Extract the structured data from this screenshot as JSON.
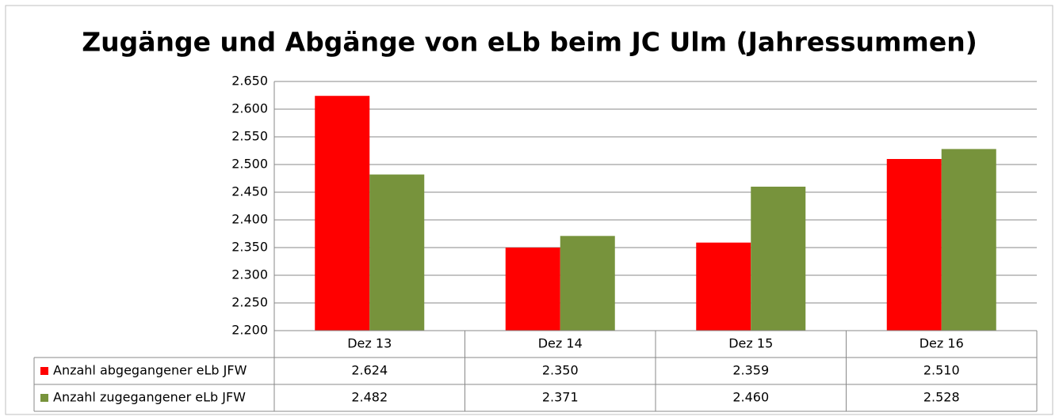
{
  "chart_data": {
    "type": "bar",
    "title": "Zugänge und Abgänge von eLb beim JC Ulm (Jahressummen)",
    "categories": [
      "Dez 13",
      "Dez 14",
      "Dez 15",
      "Dez 16"
    ],
    "series": [
      {
        "name": "Anzahl abgegangener eLb JFW",
        "color": "#ff0000",
        "values": [
          2624,
          2350,
          2359,
          2510
        ],
        "value_labels": [
          "2.624",
          "2.350",
          "2.359",
          "2.510"
        ]
      },
      {
        "name": "Anzahl zugegangener eLb JFW",
        "color": "#77933c",
        "values": [
          2482,
          2371,
          2460,
          2528
        ],
        "value_labels": [
          "2.482",
          "2.371",
          "2.460",
          "2.528"
        ]
      }
    ],
    "ylim": [
      2200,
      2650
    ],
    "yticks": [
      {
        "value": 2200,
        "label": "2.200"
      },
      {
        "value": 2250,
        "label": "2.250"
      },
      {
        "value": 2300,
        "label": "2.300"
      },
      {
        "value": 2350,
        "label": "2.350"
      },
      {
        "value": 2400,
        "label": "2.400"
      },
      {
        "value": 2450,
        "label": "2.450"
      },
      {
        "value": 2500,
        "label": "2.500"
      },
      {
        "value": 2550,
        "label": "2.550"
      },
      {
        "value": 2600,
        "label": "2.600"
      },
      {
        "value": 2650,
        "label": "2.650"
      }
    ],
    "grid": true
  }
}
